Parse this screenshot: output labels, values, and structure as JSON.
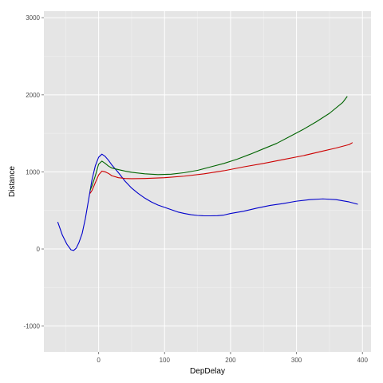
{
  "chart_data": {
    "type": "line",
    "title": "",
    "xlabel": "DepDelay",
    "ylabel": "Distance",
    "xlim": [
      -83,
      413
    ],
    "ylim": [
      -1335,
      3085
    ],
    "x_ticks": [
      0,
      100,
      200,
      300,
      400
    ],
    "y_ticks": [
      -1000,
      0,
      1000,
      2000,
      3000
    ],
    "x_tick_labels": [
      "0",
      "100",
      "200",
      "300",
      "400"
    ],
    "y_tick_labels": [
      "-1000",
      "0",
      "1000",
      "2000",
      "3000"
    ],
    "grid": true,
    "legend": "none",
    "colors": {
      "panel_bg": "#E5E5E5",
      "grid_major": "#FFFFFF",
      "grid_minor": "#F2F2F2"
    },
    "series": [
      {
        "color": "#0000CC",
        "x": [
          -62,
          -55,
          -48,
          -42,
          -38,
          -34,
          -30,
          -25,
          -20,
          -15,
          -10,
          -5,
          0,
          5,
          10,
          15,
          20,
          30,
          40,
          50,
          60,
          70,
          80,
          90,
          100,
          110,
          120,
          130,
          140,
          150,
          160,
          170,
          180,
          190,
          200,
          220,
          240,
          260,
          280,
          300,
          320,
          340,
          360,
          380,
          393
        ],
        "y": [
          350,
          180,
          60,
          -10,
          -20,
          10,
          80,
          200,
          400,
          650,
          900,
          1080,
          1190,
          1230,
          1200,
          1150,
          1090,
          990,
          880,
          790,
          720,
          660,
          610,
          570,
          540,
          510,
          480,
          460,
          445,
          435,
          430,
          430,
          432,
          440,
          460,
          490,
          530,
          565,
          590,
          620,
          640,
          650,
          640,
          610,
          580
        ]
      },
      {
        "color": "#CC0000",
        "x": [
          -13,
          -10,
          -5,
          0,
          5,
          10,
          15,
          20,
          30,
          40,
          50,
          70,
          100,
          130,
          160,
          190,
          220,
          250,
          280,
          310,
          340,
          360,
          380,
          385
        ],
        "y": [
          720,
          760,
          860,
          960,
          1010,
          1000,
          980,
          950,
          925,
          915,
          912,
          915,
          925,
          945,
          975,
          1015,
          1065,
          1110,
          1160,
          1210,
          1270,
          1310,
          1355,
          1380
        ]
      },
      {
        "color": "#006400",
        "x": [
          -13,
          -10,
          -5,
          0,
          5,
          10,
          15,
          20,
          30,
          40,
          50,
          70,
          90,
          110,
          130,
          150,
          170,
          190,
          210,
          230,
          250,
          270,
          290,
          310,
          330,
          350,
          370,
          377
        ],
        "y": [
          760,
          820,
          950,
          1100,
          1140,
          1110,
          1075,
          1050,
          1030,
          1010,
          995,
          975,
          965,
          970,
          990,
          1020,
          1065,
          1110,
          1165,
          1230,
          1300,
          1370,
          1460,
          1550,
          1650,
          1760,
          1900,
          1980
        ]
      }
    ]
  }
}
